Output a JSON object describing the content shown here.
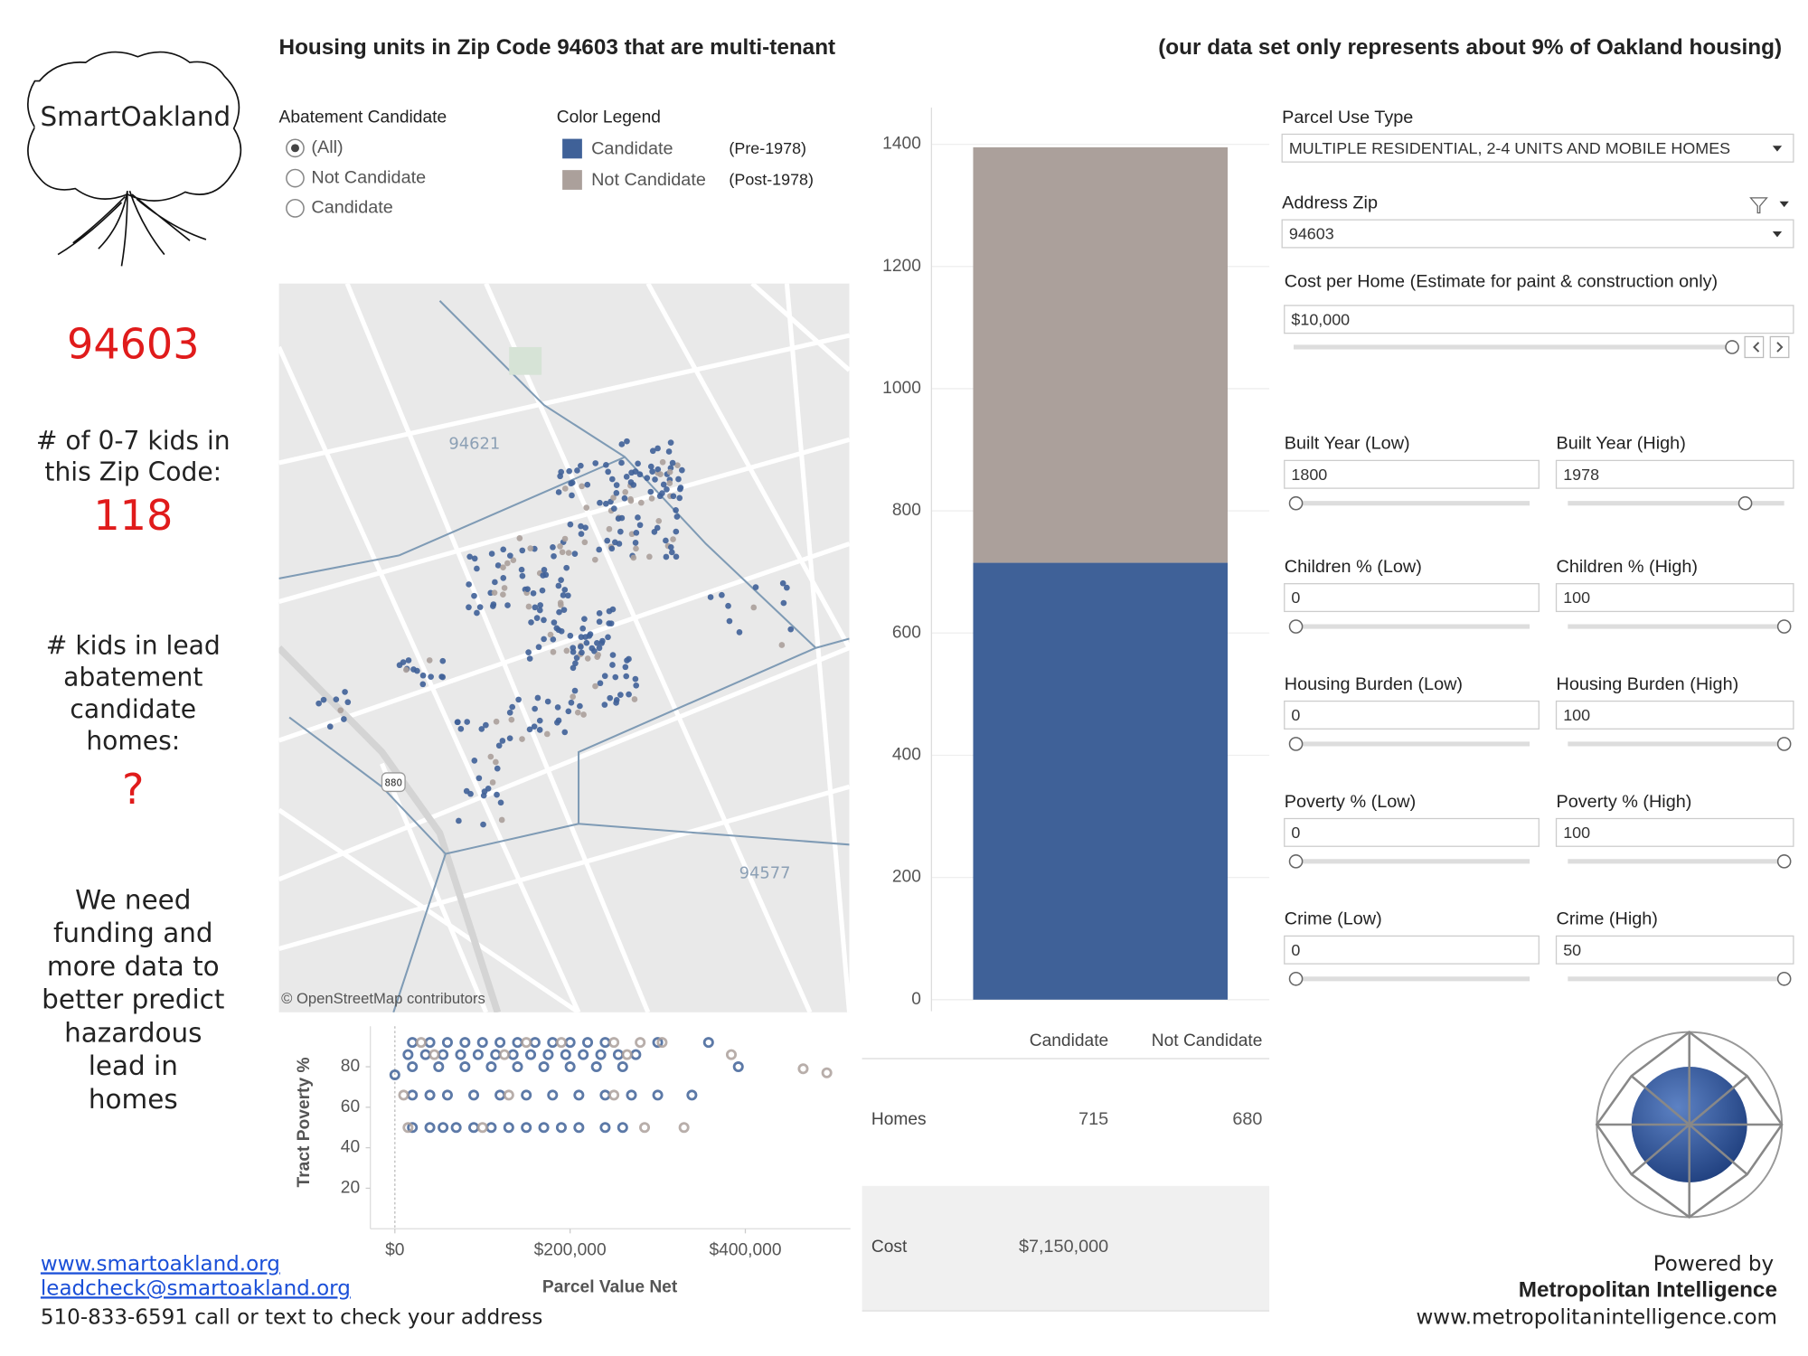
{
  "header": {
    "title": "Housing units in Zip Code 94603 that are multi-tenant",
    "note": "(our data set only represents about 9% of Oakland housing)"
  },
  "logo": "SmartOakland",
  "sidebar": {
    "zip": "94603",
    "kids_label": [
      "# of 0-7 kids in",
      "this Zip Code:"
    ],
    "kids": 118,
    "lead_label": [
      "# kids in lead",
      "abatement",
      "candidate",
      "homes:"
    ],
    "lead_value": "?",
    "note": [
      "We need",
      "funding and",
      "more data to",
      "better predict",
      "hazardous",
      "lead in",
      "homes"
    ]
  },
  "abatement_filter": {
    "title": "Abatement Candidate",
    "options": [
      "(All)",
      "Not Candidate",
      "Candidate"
    ],
    "selected": 0
  },
  "color_legend": {
    "title": "Color Legend",
    "notes": [
      "(Pre-1978)",
      "(Post-1978)"
    ]
  },
  "map": {
    "labels": [
      "94621",
      "94577"
    ],
    "shield": "880",
    "credit": "© OpenStreetMap contributors"
  },
  "chart_data": [
    {
      "type": "bar",
      "stacked": true,
      "categories": [
        null
      ],
      "series": [
        {
          "name": "Candidate",
          "color": "#3f6198",
          "values": [
            715
          ]
        },
        {
          "name": "Not Candidate",
          "color": "#aba09b",
          "values": [
            680
          ]
        }
      ],
      "ylim": [
        0,
        1460
      ],
      "yticks": [
        0,
        200,
        400,
        600,
        800,
        1000,
        1200,
        1400
      ],
      "grid": true
    },
    {
      "type": "scatter",
      "x_label": "Parcel Value Net",
      "y_label": "Tract Poverty %",
      "xlim": [
        -28000,
        520000
      ],
      "ylim": [
        0,
        100
      ],
      "xticks": [
        {
          "value": 0,
          "label": "$0"
        },
        {
          "value": 200000,
          "label": "$200,000"
        },
        {
          "value": 400000,
          "label": "$400,000"
        }
      ],
      "yticks": [
        20,
        40,
        60,
        80
      ],
      "series": [
        {
          "color": "#3f6198",
          "x": [
            20000,
            40000,
            60000,
            80000,
            100000,
            120000,
            140000,
            160000,
            180000,
            200000,
            220000,
            240000,
            300000,
            358000,
            15000,
            35000,
            55000,
            75000,
            95000,
            115000,
            135000,
            155000,
            175000,
            195000,
            215000,
            235000,
            255000,
            275000,
            20000,
            50000,
            80000,
            110000,
            140000,
            170000,
            200000,
            230000,
            260000,
            392000,
            20000,
            40000,
            60000,
            90000,
            120000,
            150000,
            180000,
            210000,
            240000,
            270000,
            300000,
            339000,
            20000,
            40000,
            55000,
            70000,
            90000,
            110000,
            130000,
            150000,
            170000,
            190000,
            210000,
            240000,
            260000,
            0
          ],
          "y": [
            92,
            92,
            92,
            92,
            92,
            92,
            92,
            92,
            92,
            92,
            92,
            92,
            92,
            92,
            86,
            86,
            86,
            86,
            86,
            86,
            86,
            86,
            86,
            86,
            86,
            86,
            86,
            86,
            80,
            80,
            80,
            80,
            80,
            80,
            80,
            80,
            80,
            80,
            66,
            66,
            66,
            66,
            66,
            66,
            66,
            66,
            66,
            66,
            66,
            66,
            50,
            50,
            50,
            50,
            50,
            50,
            50,
            50,
            50,
            50,
            50,
            50,
            50,
            76
          ]
        },
        {
          "color": "#aba09b",
          "x": [
            30000,
            150000,
            190000,
            250000,
            280000,
            305000,
            384000,
            466000,
            493000,
            45000,
            125000,
            265000,
            10000,
            130000,
            250000,
            15000,
            100000,
            285000,
            330000
          ],
          "y": [
            92,
            92,
            92,
            92,
            92,
            92,
            86,
            79,
            77,
            86,
            86,
            86,
            66,
            66,
            66,
            50,
            50,
            50,
            50
          ]
        }
      ]
    }
  ],
  "table": {
    "columns": [
      "Candidate",
      "Not Candidate"
    ],
    "rows": [
      {
        "label": "Homes",
        "cells": [
          715,
          680
        ]
      },
      {
        "label": "Cost",
        "cells": [
          "$7,150,000",
          null
        ]
      }
    ]
  },
  "filters": {
    "parcel_use_type": {
      "label": "Parcel Use Type",
      "value": "MULTIPLE RESIDENTIAL, 2-4 UNITS AND MOBILE HOMES"
    },
    "address_zip": {
      "label": "Address Zip",
      "value": "94603"
    },
    "cost_per_home": {
      "label": "Cost per Home (Estimate for paint & construction only)",
      "value": "$10,000"
    },
    "ranges": [
      {
        "low_label": "Built Year (Low)",
        "low": 1800,
        "high_label": "Built Year (High)",
        "high": 1978
      },
      {
        "low_label": "Children % (Low)",
        "low": 0,
        "high_label": "Children % (High)",
        "high": 100
      },
      {
        "low_label": "Housing Burden (Low)",
        "low": 0,
        "high_label": "Housing Burden (High)",
        "high": 100
      },
      {
        "low_label": "Poverty % (Low)",
        "low": 0,
        "high_label": "Poverty % (High)",
        "high": 100
      },
      {
        "low_label": "Crime (Low)",
        "low": 0,
        "high_label": "Crime (High)",
        "high": 50
      }
    ]
  },
  "footer": {
    "links": [
      "www.smartoakland.org",
      "leadcheck@smartoakland.org"
    ],
    "contact": "510-833-6591 call or text to check your address",
    "powered_by": "Powered by",
    "company": "Metropolitan Intelligence",
    "company_url": "www.metropolitanintelligence.com"
  }
}
